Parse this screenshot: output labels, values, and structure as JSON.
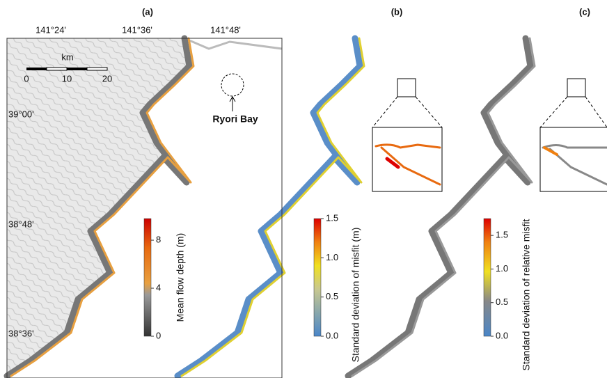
{
  "panels": [
    "(a)",
    "(b)",
    "(c)"
  ],
  "longitude_labels": [
    "141°24'",
    "141°36'",
    "141°48'"
  ],
  "latitude_labels": [
    "39°00'",
    "38°48'",
    "38°36'"
  ],
  "scale_bar": {
    "unit": "km",
    "labels": [
      "0",
      "10",
      "20"
    ]
  },
  "annotation": "Ryori Bay",
  "colorbars": [
    {
      "label": "Mean flow depth (m)",
      "lim": [
        0,
        9.8
      ],
      "ticks": [
        0,
        4,
        8
      ]
    },
    {
      "label": "Standard deviation of misfit (m)",
      "lim": [
        0,
        1.5
      ],
      "ticks": [
        {
          "value": 0,
          "label": "0.0"
        },
        {
          "value": 0.5,
          "label": "0.5"
        },
        {
          "value": 1,
          "label": "1.0"
        },
        {
          "value": 1.5,
          "label": "1.5"
        }
      ]
    },
    {
      "label": "Standard deviation of relative misfit",
      "lim": [
        0,
        1.75
      ],
      "ticks": [
        {
          "value": 0,
          "label": "0.0"
        },
        {
          "value": 0.5,
          "label": "0.5"
        },
        {
          "value": 1,
          "label": "1.0"
        },
        {
          "value": 1.5,
          "label": "1.5"
        }
      ]
    }
  ]
}
